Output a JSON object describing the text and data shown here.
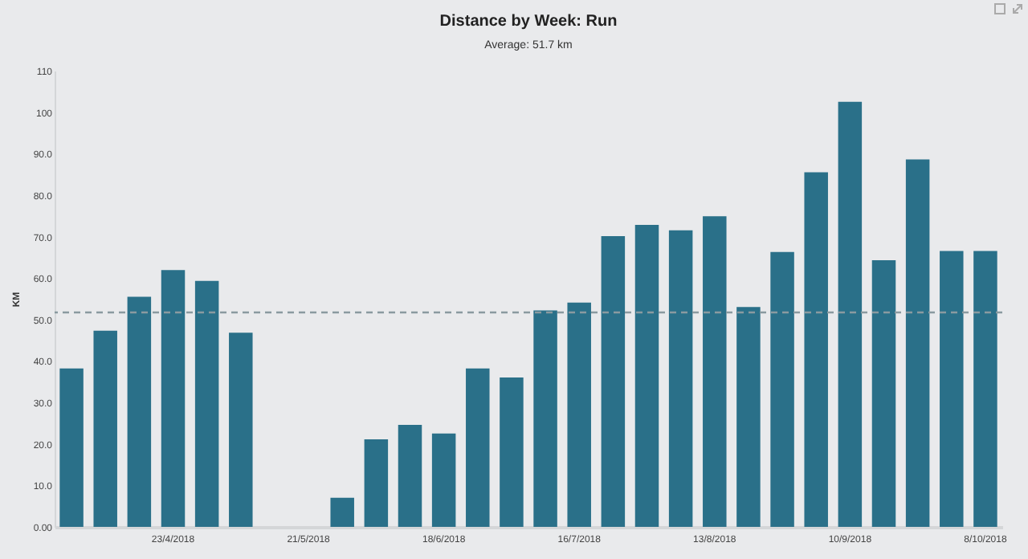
{
  "chart_data": {
    "type": "bar",
    "title": "Distance by Week: Run",
    "subtitle": "Average: 51.7 km",
    "ylabel": "KM",
    "categories": [
      null,
      null,
      null,
      "23/4/2018",
      null,
      null,
      null,
      "21/5/2018",
      null,
      null,
      null,
      "18/6/2018",
      null,
      null,
      null,
      "16/7/2018",
      null,
      null,
      null,
      "13/8/2018",
      null,
      null,
      null,
      "10/9/2018",
      null,
      null,
      null,
      "8/10/2018"
    ],
    "values": [
      38.2,
      47.3,
      55.5,
      61.9,
      59.3,
      46.8,
      0,
      0,
      7.0,
      21.1,
      24.6,
      22.5,
      38.2,
      36.0,
      52.2,
      54.1,
      70.1,
      72.8,
      71.5,
      74.9,
      53.0,
      66.3,
      85.5,
      102.5,
      64.3,
      88.6,
      66.5,
      66.5
    ],
    "color": "#2a7089",
    "ylim": [
      0,
      110
    ],
    "yticks": [
      {
        "value": 0,
        "label": "0.00"
      },
      {
        "value": 10,
        "label": "10.0"
      },
      {
        "value": 20,
        "label": "20.0"
      },
      {
        "value": 30,
        "label": "30.0"
      },
      {
        "value": 40,
        "label": "40.0"
      },
      {
        "value": 50,
        "label": "50.0"
      },
      {
        "value": 60,
        "label": "60.0"
      },
      {
        "value": 70,
        "label": "70.0"
      },
      {
        "value": 80,
        "label": "80.0"
      },
      {
        "value": 90,
        "label": "90.0"
      },
      100,
      110
    ],
    "ref_lines": [
      {
        "axis": "y",
        "value": 51.7,
        "label": null,
        "color": "#8a9aa0",
        "line_style": "dashed"
      }
    ],
    "grid": false
  }
}
